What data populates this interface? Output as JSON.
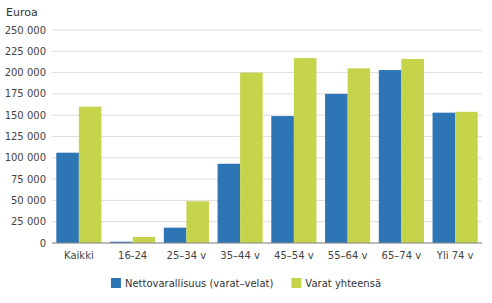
{
  "chart_data": {
    "type": "bar",
    "ylabel": "Euroa",
    "categories": [
      "Kaikki",
      "16-24",
      "25–34 v",
      "35–44 v",
      "45–54 v",
      "55–64 v",
      "65–74 v",
      "Yli 74 v"
    ],
    "series": [
      {
        "name": "Nettovarallisuus (varat–velat)",
        "color": "#2E75B6",
        "values": [
          106000,
          1500,
          18000,
          93000,
          149000,
          175000,
          203000,
          153000
        ]
      },
      {
        "name": "Varat yhteensä",
        "color": "#C5D44B",
        "values": [
          160000,
          7000,
          49000,
          200000,
          217000,
          205000,
          216000,
          154000
        ]
      }
    ],
    "ylim": [
      0,
      250000
    ],
    "yticks": [
      0,
      {
        "value": 25000,
        "label": "25 000"
      },
      {
        "value": 50000,
        "label": "50 000"
      },
      {
        "value": 75000,
        "label": "75 000"
      },
      {
        "value": 100000,
        "label": "100 000"
      },
      {
        "value": 125000,
        "label": "125 000"
      },
      {
        "value": 150000,
        "label": "150 000"
      },
      {
        "value": 175000,
        "label": "175 000"
      },
      {
        "value": 200000,
        "label": "200 000"
      },
      {
        "value": 225000,
        "label": "225 000"
      },
      {
        "value": 250000,
        "label": "250 000"
      }
    ],
    "grid": true,
    "legend": "bottom"
  }
}
